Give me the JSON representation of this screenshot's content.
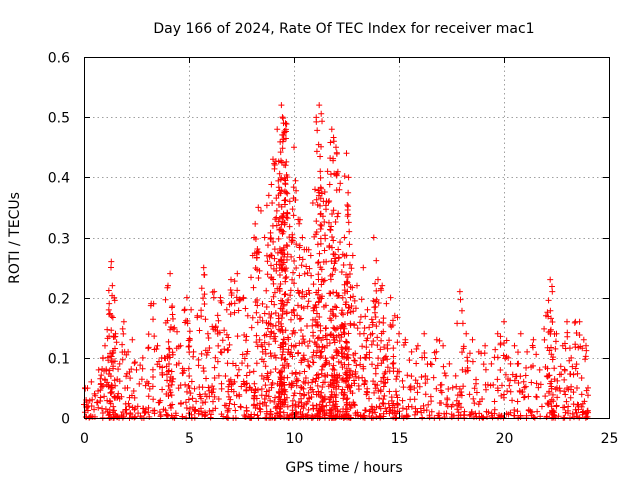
{
  "chart_data": {
    "type": "scatter",
    "title": "Day 166 of 2024, Rate Of TEC Index for receiver mac1",
    "xlabel": "GPS time / hours",
    "ylabel": "ROTI / TECUs",
    "xlim": [
      0,
      25
    ],
    "ylim": [
      0,
      0.6
    ],
    "xticks": [
      "0",
      "5",
      "10",
      "15",
      "20",
      "25"
    ],
    "yticks": [
      "0",
      "0.1",
      "0.2",
      "0.3",
      "0.4",
      "0.5",
      "0.6"
    ],
    "grid": true,
    "marker": "+",
    "color": "#ff0000",
    "series": [
      {
        "x": [
          0.05,
          0.1,
          0.2,
          0.35,
          0.5,
          0.7,
          0.9,
          1.0,
          1.2,
          1.3,
          1.35,
          1.5,
          1.7,
          1.9,
          2.1,
          2.3,
          2.5,
          2.8,
          3.0,
          3.2,
          3.5,
          3.7,
          4.0,
          4.1,
          4.3,
          4.6,
          4.9,
          5.1,
          5.4,
          5.7,
          5.9,
          6.2,
          6.5,
          6.8,
          7.0,
          7.3,
          7.6,
          7.8,
          8.1,
          8.3,
          8.6,
          8.8,
          9.0,
          9.2,
          9.4,
          9.45,
          9.5,
          9.6,
          9.8,
          10.0,
          10.2,
          10.4,
          10.6,
          10.8,
          11.0,
          11.2,
          11.25,
          11.4,
          11.6,
          11.8,
          11.9,
          12.0,
          12.2,
          12.4,
          12.5,
          12.6,
          12.8,
          13.0,
          13.3,
          13.5,
          13.8,
          14.0,
          14.2,
          14.4,
          14.6,
          14.8,
          15.0,
          15.3,
          15.6,
          15.9,
          16.2,
          16.5,
          16.8,
          17.1,
          17.4,
          17.7,
          17.9,
          18.2,
          18.5,
          18.8,
          19.1,
          19.4,
          19.7,
          20.0,
          20.2,
          20.5,
          20.8,
          21.1,
          21.4,
          21.7,
          22.0,
          22.2,
          22.3,
          22.5,
          22.8,
          23.0,
          23.2,
          23.4,
          23.6,
          23.8,
          24.0
        ],
        "y": [
          0.05,
          0.03,
          0.02,
          0.06,
          0.04,
          0.08,
          0.1,
          0.12,
          0.19,
          0.26,
          0.22,
          0.14,
          0.09,
          0.16,
          0.11,
          0.13,
          0.08,
          0.1,
          0.06,
          0.19,
          0.12,
          0.1,
          0.22,
          0.24,
          0.15,
          0.12,
          0.2,
          0.18,
          0.17,
          0.25,
          0.14,
          0.21,
          0.2,
          0.18,
          0.23,
          0.24,
          0.2,
          0.17,
          0.3,
          0.35,
          0.3,
          0.37,
          0.43,
          0.48,
          0.52,
          0.5,
          0.49,
          0.42,
          0.36,
          0.45,
          0.33,
          0.3,
          0.28,
          0.27,
          0.38,
          0.52,
          0.41,
          0.36,
          0.41,
          0.48,
          0.46,
          0.45,
          0.39,
          0.3,
          0.44,
          0.4,
          0.27,
          0.22,
          0.25,
          0.18,
          0.3,
          0.23,
          0.22,
          0.19,
          0.2,
          0.17,
          0.14,
          0.13,
          0.11,
          0.12,
          0.14,
          0.09,
          0.13,
          0.12,
          0.09,
          0.07,
          0.21,
          0.14,
          0.13,
          0.11,
          0.12,
          0.09,
          0.14,
          0.16,
          0.1,
          0.12,
          0.14,
          0.11,
          0.13,
          0.08,
          0.17,
          0.23,
          0.21,
          0.14,
          0.12,
          0.16,
          0.1,
          0.16,
          0.16,
          0.13,
          0.05
        ]
      }
    ]
  }
}
